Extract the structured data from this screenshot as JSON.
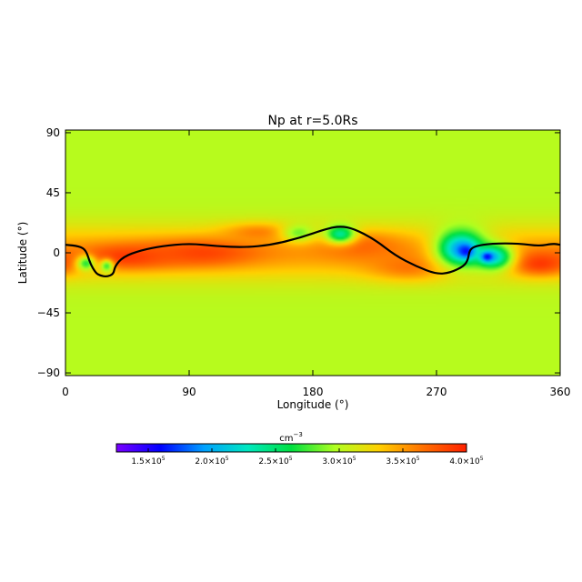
{
  "chart_data": {
    "type": "heatmap",
    "title": "Np at r=5.0Rs",
    "xlabel": "Longitude (°)",
    "ylabel": "Latitude (°)",
    "xlim": [
      0,
      360
    ],
    "ylim": [
      -92,
      92
    ],
    "xticks": [
      0,
      90,
      180,
      270,
      360
    ],
    "xtick_labels": [
      "0",
      "90",
      "180",
      "270",
      "360"
    ],
    "yticks": [
      90,
      45,
      0,
      -45,
      -90
    ],
    "ytick_labels": [
      "90",
      "45",
      "0",
      "−45",
      "−90"
    ],
    "colorbar": {
      "unit_label": "cm",
      "unit_exponent": "−3",
      "range": [
        125000,
        400000
      ],
      "colors": [
        "#7a00ff",
        "#0000ff",
        "#00a0ff",
        "#00e8c0",
        "#00e040",
        "#b0ff20",
        "#ffd000",
        "#ff7000",
        "#ff2000"
      ],
      "ticks": [
        {
          "value": 150000,
          "mantissa": "1.5×10",
          "exponent": "5"
        },
        {
          "value": 200000,
          "mantissa": "2.0×10",
          "exponent": "5"
        },
        {
          "value": 250000,
          "mantissa": "2.5×10",
          "exponent": "5"
        },
        {
          "value": 300000,
          "mantissa": "3.0×10",
          "exponent": "5"
        },
        {
          "value": 350000,
          "mantissa": "3.5×10",
          "exponent": "5"
        },
        {
          "value": 400000,
          "mantissa": "4.0×10",
          "exponent": "5"
        }
      ]
    },
    "background_value": 300000,
    "field_features": [
      {
        "kind": "band",
        "lat_center": 0,
        "lat_width": 20,
        "value": 350000
      },
      {
        "kind": "blob",
        "lon": 45,
        "lat": -3,
        "dlon": 35,
        "dlat": 9,
        "value": 390000
      },
      {
        "kind": "blob",
        "lon": 100,
        "lat": 0,
        "dlon": 40,
        "dlat": 10,
        "value": 385000
      },
      {
        "kind": "blob",
        "lon": 140,
        "lat": 15,
        "dlon": 25,
        "dlat": 7,
        "value": 360000
      },
      {
        "kind": "blob",
        "lon": 215,
        "lat": 5,
        "dlon": 30,
        "dlat": 10,
        "value": 370000
      },
      {
        "kind": "blob",
        "lon": 345,
        "lat": -8,
        "dlon": 22,
        "dlat": 9,
        "value": 390000
      },
      {
        "kind": "blob",
        "lon": 250,
        "lat": -10,
        "dlon": 30,
        "dlat": 10,
        "value": 365000
      },
      {
        "kind": "blob",
        "lon": 15,
        "lat": -8,
        "dlon": 7,
        "dlat": 6,
        "value": 270000
      },
      {
        "kind": "blob",
        "lon": 30,
        "lat": -10,
        "dlon": 5,
        "dlat": 5,
        "value": 275000
      },
      {
        "kind": "blob",
        "lon": 170,
        "lat": 15,
        "dlon": 12,
        "dlat": 7,
        "value": 285000
      },
      {
        "kind": "blob",
        "lon": 200,
        "lat": 14,
        "dlon": 11,
        "dlat": 7,
        "value": 240000
      },
      {
        "kind": "blob",
        "lon": 288,
        "lat": 3,
        "dlon": 18,
        "dlat": 14,
        "value": 195000
      },
      {
        "kind": "blob",
        "lon": 292,
        "lat": 1,
        "dlon": 6,
        "dlat": 5,
        "value": 155000
      },
      {
        "kind": "blob",
        "lon": 312,
        "lat": -3,
        "dlon": 14,
        "dlat": 10,
        "value": 220000
      },
      {
        "kind": "blob",
        "lon": 307,
        "lat": -3,
        "dlon": 5,
        "dlat": 4,
        "value": 160000
      }
    ],
    "contour_line": [
      [
        0,
        6
      ],
      [
        10,
        5
      ],
      [
        15,
        2
      ],
      [
        18,
        -8
      ],
      [
        22,
        -15
      ],
      [
        25,
        -17
      ],
      [
        30,
        -18
      ],
      [
        35,
        -16
      ],
      [
        36,
        -10
      ],
      [
        42,
        -3
      ],
      [
        55,
        2
      ],
      [
        70,
        5
      ],
      [
        90,
        7
      ],
      [
        110,
        5
      ],
      [
        130,
        4
      ],
      [
        150,
        6
      ],
      [
        170,
        11
      ],
      [
        190,
        18
      ],
      [
        200,
        20
      ],
      [
        210,
        18
      ],
      [
        225,
        10
      ],
      [
        240,
        -2
      ],
      [
        255,
        -10
      ],
      [
        270,
        -16
      ],
      [
        280,
        -15
      ],
      [
        290,
        -10
      ],
      [
        293,
        -5
      ],
      [
        294,
        2
      ],
      [
        298,
        5
      ],
      [
        310,
        7
      ],
      [
        330,
        7
      ],
      [
        345,
        5
      ],
      [
        355,
        7
      ],
      [
        360,
        6
      ]
    ]
  }
}
